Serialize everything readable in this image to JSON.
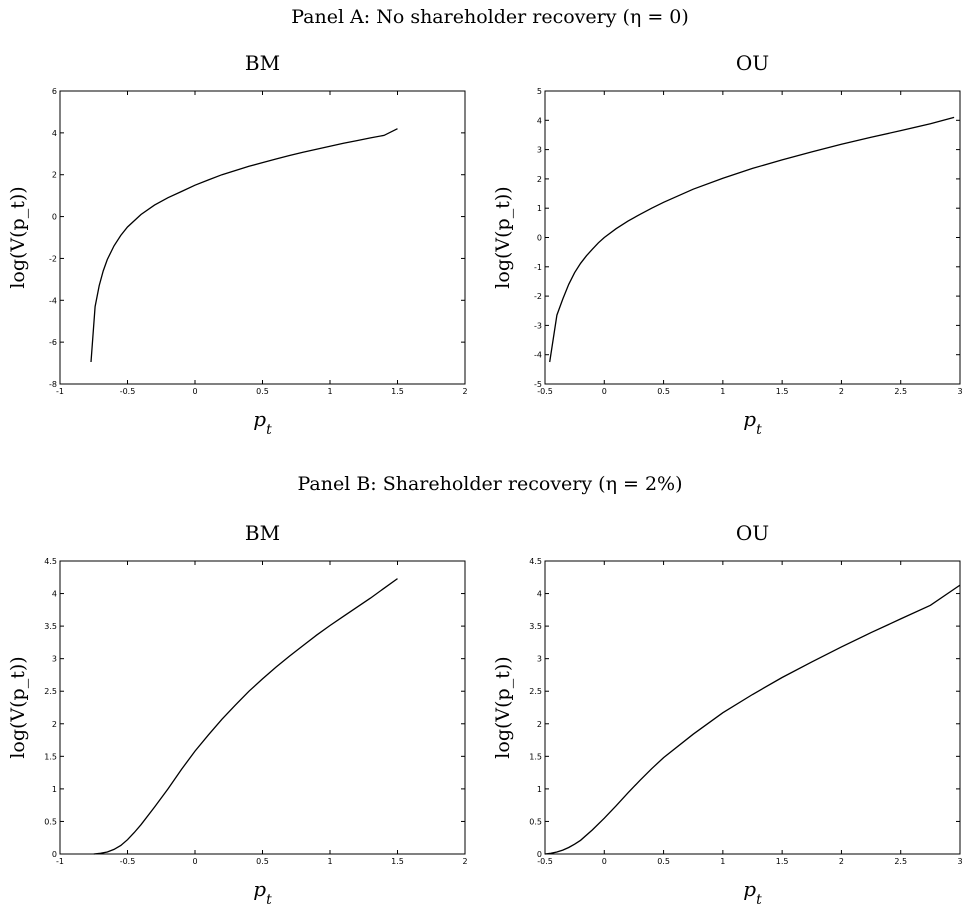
{
  "panels": [
    {
      "title": "Panel A: No shareholder recovery (η = 0)"
    },
    {
      "title": "Panel B: Shareholder recovery (η = 2%)"
    }
  ],
  "chart_data": [
    {
      "type": "line",
      "panel": "A",
      "title": "BM",
      "xlabel": "p_t",
      "ylabel": "log(V(p_t))",
      "xlim": [
        -1,
        2
      ],
      "ylim": [
        -8,
        6
      ],
      "xticks": [
        -1,
        -0.5,
        0,
        0.5,
        1,
        1.5,
        2
      ],
      "yticks": [
        -8,
        -6,
        -4,
        -2,
        0,
        2,
        4,
        6
      ],
      "xtick_labels": [
        "-1",
        "-0.5",
        "0",
        "0.5",
        "1",
        "1.5",
        "2"
      ],
      "ytick_labels": [
        "-8",
        "-6",
        "-4",
        "-2",
        "0",
        "2",
        "4",
        "6"
      ],
      "grid": false,
      "series": [
        {
          "x": [
            -0.77,
            -0.74,
            -0.71,
            -0.68,
            -0.65,
            -0.6,
            -0.55,
            -0.5,
            -0.4,
            -0.3,
            -0.2,
            -0.1,
            0,
            0.1,
            0.2,
            0.3,
            0.4,
            0.5,
            0.6,
            0.7,
            0.8,
            0.9,
            1.0,
            1.1,
            1.2,
            1.3,
            1.4,
            1.5
          ],
          "y": [
            -6.95,
            -4.3,
            -3.3,
            -2.6,
            -2.05,
            -1.4,
            -0.9,
            -0.5,
            0.1,
            0.55,
            0.9,
            1.2,
            1.5,
            1.75,
            2.0,
            2.2,
            2.4,
            2.58,
            2.75,
            2.92,
            3.07,
            3.22,
            3.36,
            3.5,
            3.63,
            3.76,
            3.88,
            4.2
          ]
        }
      ]
    },
    {
      "type": "line",
      "panel": "A",
      "title": "OU",
      "xlabel": "p_t",
      "ylabel": "log(V(p_t))",
      "xlim": [
        -0.5,
        3
      ],
      "ylim": [
        -5,
        5
      ],
      "xticks": [
        -0.5,
        0,
        0.5,
        1,
        1.5,
        2,
        2.5,
        3
      ],
      "yticks": [
        -5,
        -4,
        -3,
        -2,
        -1,
        0,
        1,
        2,
        3,
        4,
        5
      ],
      "xtick_labels": [
        "-0.5",
        "0",
        "0.5",
        "1",
        "1.5",
        "2",
        "2.5",
        "3"
      ],
      "ytick_labels": [
        "-5",
        "-4",
        "-3",
        "-2",
        "-1",
        "0",
        "1",
        "2",
        "3",
        "4",
        "5"
      ],
      "grid": false,
      "series": [
        {
          "x": [
            -0.46,
            -0.4,
            -0.35,
            -0.3,
            -0.25,
            -0.2,
            -0.15,
            -0.1,
            -0.05,
            0,
            0.1,
            0.2,
            0.3,
            0.4,
            0.5,
            0.75,
            1.0,
            1.25,
            1.5,
            1.75,
            2.0,
            2.25,
            2.5,
            2.75,
            2.95
          ],
          "y": [
            -4.25,
            -2.65,
            -2.1,
            -1.6,
            -1.2,
            -0.88,
            -0.62,
            -0.4,
            -0.18,
            0.0,
            0.3,
            0.56,
            0.79,
            1.0,
            1.2,
            1.65,
            2.02,
            2.36,
            2.65,
            2.92,
            3.18,
            3.42,
            3.65,
            3.88,
            4.1
          ]
        }
      ]
    },
    {
      "type": "line",
      "panel": "B",
      "title": "BM",
      "xlabel": "p_t",
      "ylabel": "log(V(p_t))",
      "xlim": [
        -1,
        2
      ],
      "ylim": [
        0,
        4.5
      ],
      "xticks": [
        -1,
        -0.5,
        0,
        0.5,
        1,
        1.5,
        2
      ],
      "yticks": [
        0,
        0.5,
        1,
        1.5,
        2,
        2.5,
        3,
        3.5,
        4,
        4.5
      ],
      "xtick_labels": [
        "-1",
        "-0.5",
        "0",
        "0.5",
        "1",
        "1.5",
        "2"
      ],
      "ytick_labels": [
        "0",
        "0.5",
        "1",
        "1.5",
        "2",
        "2.5",
        "3",
        "3.5",
        "4",
        "4.5"
      ],
      "grid": false,
      "series": [
        {
          "x": [
            -0.75,
            -0.7,
            -0.65,
            -0.6,
            -0.55,
            -0.5,
            -0.45,
            -0.4,
            -0.3,
            -0.2,
            -0.1,
            0,
            0.1,
            0.2,
            0.3,
            0.4,
            0.5,
            0.6,
            0.7,
            0.8,
            0.9,
            1.0,
            1.1,
            1.2,
            1.3,
            1.4,
            1.5
          ],
          "y": [
            0.0,
            0.01,
            0.03,
            0.07,
            0.13,
            0.22,
            0.33,
            0.45,
            0.72,
            1.0,
            1.3,
            1.58,
            1.83,
            2.07,
            2.29,
            2.5,
            2.69,
            2.87,
            3.04,
            3.2,
            3.36,
            3.51,
            3.65,
            3.79,
            3.93,
            4.08,
            4.23
          ]
        }
      ]
    },
    {
      "type": "line",
      "panel": "B",
      "title": "OU",
      "xlabel": "p_t",
      "ylabel": "log(V(p_t))",
      "xlim": [
        -0.5,
        3
      ],
      "ylim": [
        0,
        4.5
      ],
      "xticks": [
        -0.5,
        0,
        0.5,
        1,
        1.5,
        2,
        2.5,
        3
      ],
      "yticks": [
        0,
        0.5,
        1,
        1.5,
        2,
        2.5,
        3,
        3.5,
        4,
        4.5
      ],
      "xtick_labels": [
        "-0.5",
        "0",
        "0.5",
        "1",
        "1.5",
        "2",
        "2.5",
        "3"
      ],
      "ytick_labels": [
        "0",
        "0.5",
        "1",
        "1.5",
        "2",
        "2.5",
        "3",
        "3.5",
        "4",
        "4.5"
      ],
      "grid": false,
      "series": [
        {
          "x": [
            -0.5,
            -0.45,
            -0.4,
            -0.35,
            -0.3,
            -0.25,
            -0.2,
            -0.1,
            0,
            0.1,
            0.2,
            0.3,
            0.4,
            0.5,
            0.75,
            1.0,
            1.25,
            1.5,
            1.75,
            2.0,
            2.25,
            2.5,
            2.75,
            3.0
          ],
          "y": [
            0.0,
            0.01,
            0.03,
            0.06,
            0.1,
            0.15,
            0.21,
            0.37,
            0.55,
            0.74,
            0.94,
            1.13,
            1.31,
            1.48,
            1.84,
            2.17,
            2.45,
            2.71,
            2.95,
            3.18,
            3.4,
            3.61,
            3.82,
            4.13
          ]
        }
      ]
    }
  ]
}
